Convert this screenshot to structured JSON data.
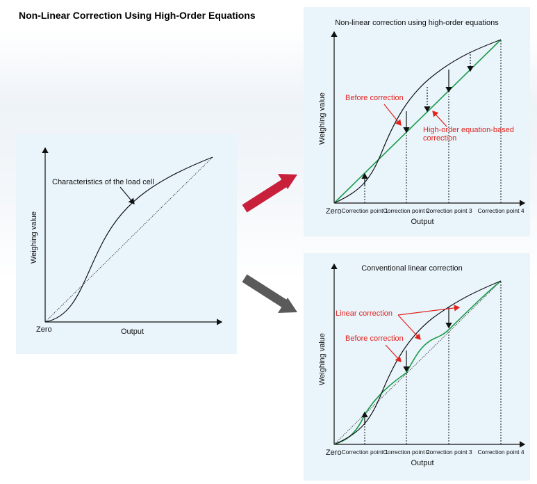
{
  "title": "Non-Linear Correction Using High-Order Equations",
  "left": {
    "ylabel": "Weighing value",
    "xlabel": "Output",
    "zero": "Zero",
    "annotation": "Characteristics of the load cell"
  },
  "top": {
    "heading": "Non-linear correction using high-order equations",
    "ylabel": "Weighing value",
    "xlabel": "Output",
    "zero": "Zero",
    "before": "Before correction",
    "after_line1": "High-order equation-based",
    "after_line2": "correction",
    "cp1": "Correction point 1",
    "cp2": "Correction point 2",
    "cp3": "Correction point 3",
    "cp4": "Correction point 4"
  },
  "bottom": {
    "heading": "Conventional linear correction",
    "ylabel": "Weighing value",
    "xlabel": "Output",
    "zero": "Zero",
    "linear": "Linear correction",
    "before": "Before correction",
    "cp1": "Correction point 1",
    "cp2": "Correction point 2",
    "cp3": "Correction point 3",
    "cp4": "Correction point 4"
  },
  "colors": {
    "panel": "#e9f4fb",
    "green": "#1a9a48",
    "red": "#e1231d",
    "arrow_red": "#c8203a",
    "arrow_gray": "#5a5a5a"
  }
}
